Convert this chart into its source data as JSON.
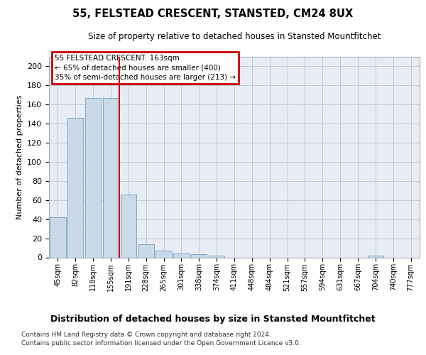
{
  "title": "55, FELSTEAD CRESCENT, STANSTED, CM24 8UX",
  "subtitle": "Size of property relative to detached houses in Stansted Mountfitchet",
  "xlabel": "Distribution of detached houses by size in Stansted Mountfitchet",
  "ylabel": "Number of detached properties",
  "footnote1": "Contains HM Land Registry data © Crown copyright and database right 2024.",
  "footnote2": "Contains public sector information licensed under the Open Government Licence v3.0.",
  "categories": [
    "45sqm",
    "82sqm",
    "118sqm",
    "155sqm",
    "191sqm",
    "228sqm",
    "265sqm",
    "301sqm",
    "338sqm",
    "374sqm",
    "411sqm",
    "448sqm",
    "484sqm",
    "521sqm",
    "557sqm",
    "594sqm",
    "631sqm",
    "667sqm",
    "704sqm",
    "740sqm",
    "777sqm"
  ],
  "values": [
    42,
    146,
    167,
    167,
    66,
    14,
    7,
    4,
    3,
    2,
    0,
    0,
    0,
    0,
    0,
    0,
    0,
    0,
    2,
    0,
    0
  ],
  "bar_color": "#c9d9e8",
  "bar_edge_color": "#7aa8c8",
  "vline_x": 3.5,
  "vline_color": "#cc0000",
  "annotation_line1": "55 FELSTEAD CRESCENT: 163sqm",
  "annotation_line2": "← 65% of detached houses are smaller (400)",
  "annotation_line3": "35% of semi-detached houses are larger (213) →",
  "annotation_box_color": "#cc0000",
  "annotation_text_color": "#000000",
  "ylim": [
    0,
    210
  ],
  "yticks": [
    0,
    20,
    40,
    60,
    80,
    100,
    120,
    140,
    160,
    180,
    200
  ],
  "grid_color": "#c0c8d8",
  "bg_color": "#e8edf5",
  "title_fontsize": 10.5,
  "subtitle_fontsize": 8.5,
  "xlabel_fontsize": 9,
  "ylabel_fontsize": 8
}
